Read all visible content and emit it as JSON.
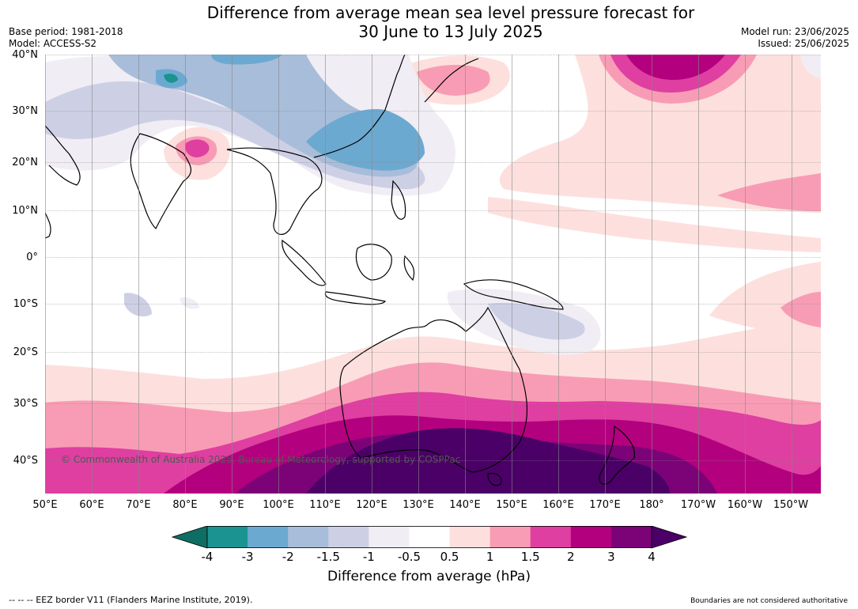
{
  "title_line1": "Difference from average mean sea level pressure forecast for",
  "title_line2": "30 June to 13 July 2025",
  "base_period": "Base period: 1981-2018",
  "model": "Model: ACCESS-S2",
  "model_run": "Model run: 23/06/2025",
  "issued": "Issued: 25/06/2025",
  "lat_labels": [
    "40°N",
    "30°N",
    "20°N",
    "10°N",
    "0°",
    "10°S",
    "20°S",
    "30°S",
    "40°S"
  ],
  "lon_labels": [
    "50°E",
    "60°E",
    "70°E",
    "80°E",
    "90°E",
    "100°E",
    "110°E",
    "120°E",
    "130°E",
    "140°E",
    "150°E",
    "160°E",
    "170°E",
    "180°",
    "170°W",
    "160°W",
    "150°W"
  ],
  "copyright": "© Commonwealth of Australia 2025, Bureau of Meteorology, supported by COSPPac",
  "colorbar": {
    "ticks": [
      "-4",
      "-3",
      "-2",
      "-1.5",
      "-1",
      "-0.5",
      "0.5",
      "1",
      "1.5",
      "2",
      "3",
      "4"
    ],
    "colors": [
      "#1a9391",
      "#6ca9d1",
      "#a8bdd9",
      "#cdd0e5",
      "#f1edf5",
      "#ffffff",
      "#fde0dd",
      "#f89cb5",
      "#de3fa0",
      "#b3007e",
      "#7b0277"
    ],
    "low_end_color": "#0f6e64",
    "high_end_color": "#4a0066",
    "label": "Difference from average (hPa)"
  },
  "footer_left": "--  --  -- EEZ border V11 (Flanders Marine Institute, 2019).",
  "footer_right": "Boundaries are not considered authoritative"
}
